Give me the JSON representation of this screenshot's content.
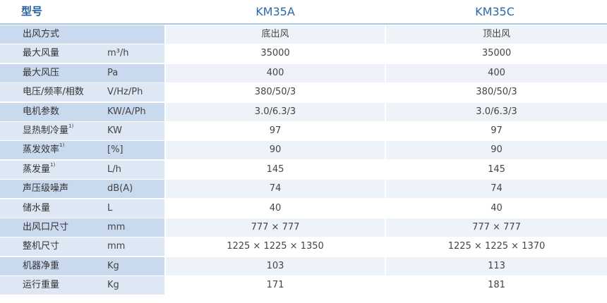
{
  "header": {
    "label": "型号",
    "models": [
      "KM35A",
      "KM35C"
    ]
  },
  "rows": [
    {
      "name": "出风方式",
      "sup": "",
      "unit": "",
      "v1": "底出风",
      "v2": "顶出风"
    },
    {
      "name": "最大风量",
      "sup": "",
      "unit": "m³/h",
      "v1": "35000",
      "v2": "35000"
    },
    {
      "name": "最大风压",
      "sup": "",
      "unit": "Pa",
      "v1": "400",
      "v2": "400"
    },
    {
      "name": "电压/频率/相数",
      "sup": "",
      "unit": "V/Hz/Ph",
      "v1": "380/50/3",
      "v2": "380/50/3"
    },
    {
      "name": "电机参数",
      "sup": "",
      "unit": "KW/A/Ph",
      "v1": "3.0/6.3/3",
      "v2": "3.0/6.3/3"
    },
    {
      "name": "显热制冷量",
      "sup": "1)",
      "unit": "KW",
      "v1": "97",
      "v2": "97"
    },
    {
      "name": "蒸发效率",
      "sup": "1)",
      "unit": "[%]",
      "v1": "90",
      "v2": "90"
    },
    {
      "name": "蒸发量",
      "sup": "1)",
      "unit": "L/h",
      "v1": "145",
      "v2": "145"
    },
    {
      "name": "声压级噪声",
      "sup": "",
      "unit": "dB(A)",
      "v1": "74",
      "v2": "74"
    },
    {
      "name": "储水量",
      "sup": "",
      "unit": "L",
      "v1": "40",
      "v2": "40"
    },
    {
      "name": "出风口尺寸",
      "sup": "",
      "unit": "mm",
      "v1": "777 × 777",
      "v2": "777 × 777"
    },
    {
      "name": "整机尺寸",
      "sup": "",
      "unit": "mm",
      "v1": "1225 × 1225 × 1350",
      "v2": "1225 × 1225 × 1370"
    },
    {
      "name": "机器净重",
      "sup": "",
      "unit": "Kg",
      "v1": "103",
      "v2": "113"
    },
    {
      "name": "运行重量",
      "sup": "",
      "unit": "Kg",
      "v1": "171",
      "v2": "181"
    }
  ],
  "colors": {
    "header_text": "#1e5f9e",
    "header_rule": "#a8c8e4",
    "label_dark": "#c9d9ee",
    "label_light": "#dde8f4",
    "value_tint": "#eef3f9"
  }
}
